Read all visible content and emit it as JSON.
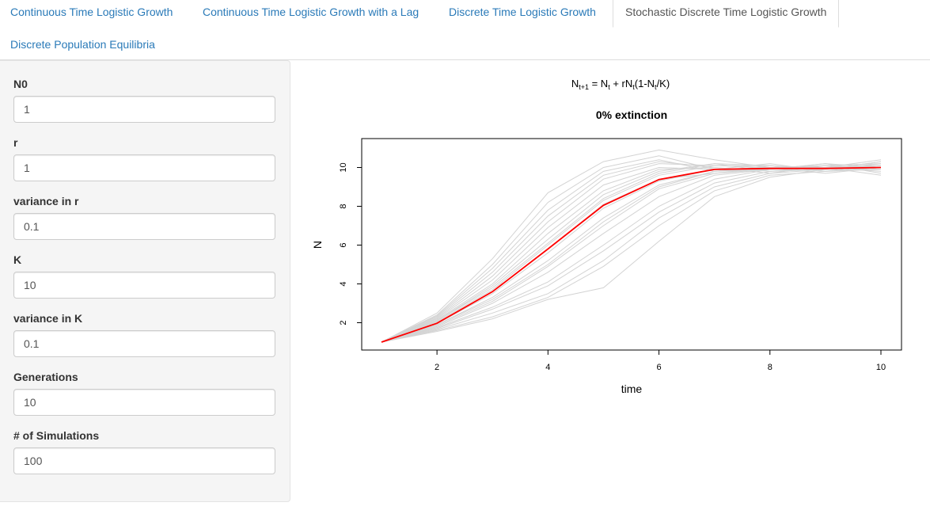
{
  "tabs": {
    "items": [
      {
        "label": "Continuous Time Logistic Growth",
        "active": false
      },
      {
        "label": "Continuous Time Logistic Growth with a Lag",
        "active": false
      },
      {
        "label": "Discrete Time Logistic Growth",
        "active": false
      },
      {
        "label": "Stochastic Discrete Time Logistic Growth",
        "active": true
      },
      {
        "label": "Discrete Population Equilibria",
        "active": false
      }
    ]
  },
  "sidebar": {
    "fields": [
      {
        "label": "N0",
        "value": "1"
      },
      {
        "label": "r",
        "value": "1"
      },
      {
        "label": "variance in r",
        "value": "0.1"
      },
      {
        "label": "K",
        "value": "10"
      },
      {
        "label": "variance in K",
        "value": "0.1"
      },
      {
        "label": "Generations",
        "value": "10"
      },
      {
        "label": "# of Simulations",
        "value": "100"
      }
    ]
  },
  "plot": {
    "equation": {
      "n": "N",
      "sub_next": "t+1",
      "eq": " = N",
      "sub_t": "t",
      "plus": " + rN",
      "sub_t2": "t",
      "paren": "(1-N",
      "sub_t3": "t",
      "close": "/K)"
    },
    "title": "0% extinction",
    "colors": {
      "simulations": "#d3d3d3",
      "mean": "#ff0000",
      "axis": "#000000"
    }
  },
  "chart_data": {
    "type": "line",
    "xlabel": "time",
    "ylabel": "N",
    "xlim": [
      1,
      10
    ],
    "ylim": [
      1,
      11
    ],
    "x_ticks": [
      2,
      4,
      6,
      8,
      10
    ],
    "y_ticks": [
      2,
      4,
      6,
      8,
      10
    ],
    "x": [
      1,
      2,
      3,
      4,
      5,
      6,
      7,
      8,
      9,
      10
    ],
    "series": [
      {
        "role": "mean",
        "color": "#ff0000",
        "values": [
          1,
          1.97,
          3.6,
          5.8,
          8.05,
          9.38,
          9.9,
          9.95,
          9.95,
          10.0
        ]
      },
      {
        "role": "simulation",
        "values": [
          1,
          1.6,
          2.3,
          3.3,
          4.9,
          7.0,
          8.8,
          9.6,
          9.8,
          9.9
        ]
      },
      {
        "role": "simulation",
        "values": [
          1,
          1.7,
          2.7,
          3.9,
          5.7,
          7.7,
          9.2,
          9.8,
          9.9,
          10.1
        ]
      },
      {
        "role": "simulation",
        "values": [
          1,
          1.8,
          3.0,
          4.6,
          6.6,
          8.5,
          9.6,
          9.9,
          10.0,
          9.8
        ]
      },
      {
        "role": "simulation",
        "values": [
          1,
          1.9,
          3.3,
          5.2,
          7.4,
          9.1,
          9.8,
          10.1,
          9.9,
          10.2
        ]
      },
      {
        "role": "simulation",
        "values": [
          1,
          2.0,
          3.6,
          5.8,
          8.1,
          9.4,
          9.7,
          9.9,
          10.1,
          10.0
        ]
      },
      {
        "role": "simulation",
        "values": [
          1,
          2.1,
          3.9,
          6.3,
          8.6,
          9.8,
          10.2,
          9.8,
          10.0,
          10.1
        ]
      },
      {
        "role": "simulation",
        "values": [
          1,
          2.2,
          4.2,
          6.9,
          9.1,
          10.0,
          9.9,
          10.0,
          9.9,
          10.3
        ]
      },
      {
        "role": "simulation",
        "values": [
          1,
          2.3,
          4.6,
          7.5,
          9.6,
          10.3,
          10.0,
          9.7,
          10.1,
          9.9
        ]
      },
      {
        "role": "simulation",
        "values": [
          1,
          2.4,
          5.0,
          8.2,
          10.0,
          10.6,
          9.9,
          10.2,
          9.8,
          10.0
        ]
      },
      {
        "role": "simulation",
        "values": [
          1,
          2.5,
          5.3,
          8.7,
          10.3,
          10.9,
          10.4,
          10.0,
          10.1,
          10.2
        ]
      },
      {
        "role": "simulation",
        "values": [
          1,
          1.75,
          2.8,
          4.1,
          6.0,
          8.0,
          9.4,
          9.9,
          10.2,
          9.7
        ]
      },
      {
        "role": "simulation",
        "values": [
          1,
          1.85,
          3.1,
          4.9,
          7.0,
          8.9,
          9.7,
          10.0,
          9.7,
          10.0
        ]
      },
      {
        "role": "simulation",
        "values": [
          1,
          2.05,
          3.7,
          6.0,
          8.3,
          9.6,
          10.1,
          10.0,
          10.0,
          10.4
        ]
      },
      {
        "role": "simulation",
        "values": [
          1,
          2.15,
          4.0,
          6.6,
          8.8,
          9.9,
          10.0,
          9.8,
          10.1,
          9.9
        ]
      },
      {
        "role": "simulation",
        "values": [
          1,
          1.65,
          2.5,
          3.5,
          5.2,
          7.4,
          9.0,
          9.7,
          9.9,
          10.1
        ]
      },
      {
        "role": "simulation",
        "values": [
          1,
          1.95,
          3.5,
          5.6,
          7.9,
          9.3,
          9.9,
          9.9,
          10.2,
          10.0
        ]
      },
      {
        "role": "simulation",
        "values": [
          1,
          2.25,
          4.4,
          7.2,
          9.4,
          10.2,
          10.1,
          10.1,
          9.8,
          10.2
        ]
      },
      {
        "role": "simulation",
        "values": [
          1,
          1.55,
          2.2,
          3.2,
          3.8,
          6.2,
          8.5,
          9.5,
          9.9,
          10.0
        ]
      },
      {
        "role": "simulation",
        "values": [
          1,
          2.35,
          4.8,
          7.8,
          9.8,
          10.4,
          9.8,
          9.9,
          10.0,
          9.6
        ]
      },
      {
        "role": "simulation",
        "values": [
          1,
          1.9,
          3.2,
          5.0,
          7.2,
          9.0,
          9.8,
          10.0,
          10.0,
          10.1
        ]
      },
      {
        "role": "simulation",
        "values": [
          1,
          2.1,
          3.8,
          6.1,
          8.4,
          9.7,
          10.2,
          10.1,
          9.9,
          10.3
        ]
      }
    ]
  }
}
